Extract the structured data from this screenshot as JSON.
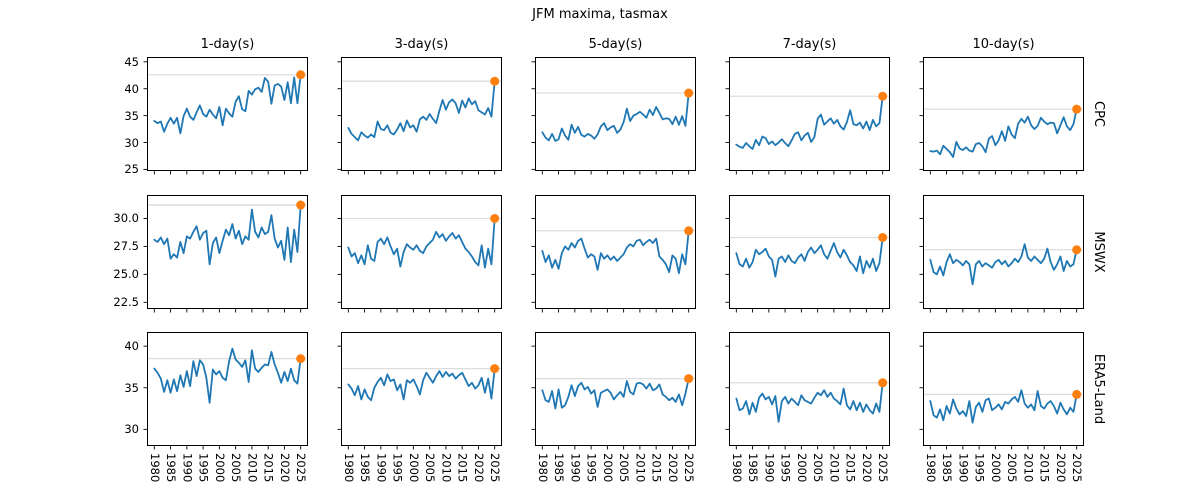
{
  "title": "JFM maxima, tasmax",
  "colors": {
    "series_line": "#1f77b4",
    "latest_dot": "#ff7f0e",
    "ref_line": "#dcdcdc",
    "frame": "#000000"
  },
  "chart_data": {
    "type": "line",
    "title": "JFM maxima, tasmax",
    "grid": "off",
    "legend": "none",
    "columns": [
      "1-day(s)",
      "3-day(s)",
      "5-day(s)",
      "7-day(s)",
      "10-day(s)"
    ],
    "x": [
      1980,
      1981,
      1982,
      1983,
      1984,
      1985,
      1986,
      1987,
      1988,
      1989,
      1990,
      1991,
      1992,
      1993,
      1994,
      1995,
      1996,
      1997,
      1998,
      1999,
      2000,
      2001,
      2002,
      2003,
      2004,
      2005,
      2006,
      2007,
      2008,
      2009,
      2010,
      2011,
      2012,
      2013,
      2014,
      2015,
      2016,
      2017,
      2018,
      2019,
      2020,
      2021,
      2022,
      2023,
      2024,
      2025
    ],
    "xlim": [
      1977.75,
      2027.25
    ],
    "x_tick_labels": [
      "1980",
      "1985",
      "1990",
      "1995",
      "2000",
      "2005",
      "2010",
      "2015",
      "2020",
      "2025"
    ],
    "x_ticks": [
      1980,
      1985,
      1990,
      1995,
      2000,
      2005,
      2010,
      2015,
      2020,
      2025
    ],
    "rows": [
      {
        "label": "CPC",
        "ylim": [
          24.7,
          45.9
        ],
        "yticks": [
          25,
          30,
          35,
          40,
          45
        ],
        "ytick_labels": [
          "25",
          "30",
          "35",
          "40",
          "45"
        ]
      },
      {
        "label": "MSWX",
        "ylim": [
          21.9,
          32.1
        ],
        "yticks": [
          22.5,
          25,
          27.5,
          30
        ],
        "ytick_labels": [
          "22.5",
          "25.0",
          "27.5",
          "30.0"
        ]
      },
      {
        "label": "ERA5-Land",
        "ylim": [
          28.0,
          41.7
        ],
        "yticks": [
          30,
          35,
          40
        ],
        "ytick_labels": [
          "30",
          "35",
          "40"
        ]
      }
    ],
    "panels": [
      {
        "row": "CPC",
        "col": "1-day(s)",
        "ref_value": 42.6,
        "dot_year": 2025,
        "dot_value": 42.6,
        "values": [
          34.0,
          33.6,
          33.9,
          32.0,
          33.5,
          34.6,
          33.5,
          34.6,
          31.7,
          34.9,
          36.3,
          34.8,
          34.2,
          35.6,
          36.9,
          35.3,
          34.8,
          36.1,
          35.2,
          34.5,
          36.6,
          33.2,
          36.3,
          35.4,
          34.8,
          37.6,
          38.6,
          36.2,
          35.8,
          39.6,
          38.9,
          39.9,
          40.2,
          39.4,
          42.0,
          41.3,
          37.2,
          40.6,
          40.9,
          40.4,
          37.9,
          41.2,
          37.3,
          42.1,
          37.3,
          42.6
        ]
      },
      {
        "row": "CPC",
        "col": "3-day(s)",
        "ref_value": 41.4,
        "dot_year": 2025,
        "dot_value": 41.4,
        "values": [
          32.7,
          31.6,
          31.0,
          30.4,
          31.9,
          31.3,
          30.9,
          31.5,
          31.0,
          33.9,
          32.5,
          32.3,
          33.2,
          31.8,
          31.5,
          32.4,
          33.6,
          32.1,
          34.1,
          32.8,
          33.2,
          32.0,
          34.3,
          34.8,
          34.2,
          35.3,
          34.4,
          33.6,
          35.9,
          37.9,
          36.1,
          37.5,
          38.0,
          37.3,
          35.5,
          37.8,
          36.5,
          38.2,
          37.1,
          37.7,
          36.0,
          35.6,
          35.2,
          36.4,
          34.8,
          41.4
        ]
      },
      {
        "row": "CPC",
        "col": "5-day(s)",
        "ref_value": 39.2,
        "dot_year": 2025,
        "dot_value": 39.2,
        "values": [
          31.9,
          30.9,
          30.4,
          31.6,
          30.3,
          30.6,
          32.6,
          31.3,
          30.5,
          33.3,
          31.8,
          32.9,
          31.4,
          31.1,
          31.6,
          31.3,
          30.7,
          31.5,
          33.0,
          33.6,
          32.3,
          32.8,
          33.1,
          31.8,
          32.4,
          33.8,
          36.3,
          34.0,
          35.0,
          35.3,
          35.7,
          35.2,
          34.6,
          36.1,
          35.1,
          36.6,
          35.5,
          34.3,
          34.5,
          34.4,
          33.4,
          34.8,
          33.3,
          34.9,
          33.1,
          39.2
        ]
      },
      {
        "row": "CPC",
        "col": "7-day(s)",
        "ref_value": 38.6,
        "dot_year": 2025,
        "dot_value": 38.6,
        "values": [
          29.6,
          29.2,
          29.0,
          29.9,
          29.3,
          28.8,
          30.5,
          29.5,
          31.1,
          30.8,
          29.7,
          30.2,
          29.5,
          30.0,
          30.6,
          29.9,
          29.3,
          30.4,
          31.6,
          31.9,
          30.4,
          31.3,
          31.8,
          30.1,
          31.0,
          34.4,
          35.2,
          33.3,
          33.9,
          34.5,
          33.5,
          34.2,
          33.0,
          32.4,
          33.8,
          36.0,
          33.4,
          33.2,
          33.7,
          32.6,
          33.9,
          32.3,
          34.2,
          33.0,
          33.6,
          38.6
        ]
      },
      {
        "row": "CPC",
        "col": "10-day(s)",
        "ref_value": 36.2,
        "dot_year": 2025,
        "dot_value": 36.2,
        "values": [
          28.4,
          28.3,
          28.5,
          27.8,
          29.4,
          28.8,
          28.2,
          27.3,
          30.1,
          28.9,
          28.6,
          29.1,
          28.5,
          28.3,
          29.7,
          29.9,
          29.3,
          28.2,
          30.7,
          31.2,
          29.5,
          30.4,
          32.1,
          30.3,
          33.0,
          31.5,
          30.8,
          33.5,
          34.4,
          33.7,
          34.8,
          33.2,
          32.5,
          33.1,
          34.6,
          33.9,
          33.4,
          33.7,
          33.6,
          31.7,
          33.2,
          34.7,
          33.0,
          32.3,
          33.4,
          36.2
        ]
      },
      {
        "row": "MSWX",
        "col": "1-day(s)",
        "ref_value": 31.2,
        "dot_year": 2025,
        "dot_value": 31.2,
        "values": [
          28.1,
          27.9,
          28.3,
          27.7,
          28.2,
          26.4,
          26.8,
          26.5,
          27.9,
          26.9,
          28.4,
          28.2,
          28.8,
          29.3,
          28.1,
          28.7,
          28.9,
          25.9,
          27.8,
          28.3,
          26.9,
          28.0,
          29.0,
          28.5,
          29.5,
          28.2,
          28.9,
          27.7,
          28.4,
          28.1,
          30.8,
          28.8,
          28.3,
          29.2,
          28.6,
          28.8,
          30.3,
          28.2,
          27.4,
          28.0,
          26.3,
          29.2,
          26.1,
          29.0,
          27.0,
          31.2
        ]
      },
      {
        "row": "MSWX",
        "col": "3-day(s)",
        "ref_value": 30.0,
        "dot_year": 2025,
        "dot_value": 30.0,
        "values": [
          27.4,
          26.6,
          26.9,
          26.0,
          26.7,
          25.9,
          27.6,
          26.4,
          26.2,
          27.9,
          28.2,
          27.7,
          28.3,
          27.5,
          26.8,
          27.3,
          25.7,
          27.0,
          27.7,
          27.4,
          27.2,
          27.6,
          27.1,
          26.9,
          27.5,
          27.8,
          28.1,
          28.8,
          28.3,
          28.6,
          28.0,
          28.4,
          28.7,
          28.2,
          28.5,
          27.9,
          27.3,
          27.0,
          26.6,
          26.1,
          25.8,
          27.6,
          25.6,
          27.3,
          25.9,
          30.0
        ]
      },
      {
        "row": "MSWX",
        "col": "5-day(s)",
        "ref_value": 28.9,
        "dot_year": 2025,
        "dot_value": 28.9,
        "values": [
          27.1,
          26.1,
          26.7,
          25.6,
          26.3,
          25.5,
          26.9,
          27.5,
          27.2,
          27.8,
          27.4,
          28.0,
          28.2,
          27.3,
          26.5,
          26.8,
          26.6,
          25.4,
          26.9,
          26.4,
          26.7,
          26.3,
          26.6,
          26.2,
          26.5,
          26.8,
          27.4,
          27.7,
          27.5,
          28.0,
          28.1,
          27.6,
          27.9,
          28.1,
          27.8,
          28.2,
          26.6,
          26.3,
          25.9,
          25.2,
          26.7,
          26.4,
          25.1,
          26.8,
          25.9,
          28.9
        ]
      },
      {
        "row": "MSWX",
        "col": "7-day(s)",
        "ref_value": 28.3,
        "dot_year": 2025,
        "dot_value": 28.3,
        "values": [
          26.9,
          25.9,
          25.7,
          26.4,
          25.6,
          26.1,
          27.2,
          26.8,
          27.0,
          27.3,
          26.6,
          26.3,
          24.8,
          26.4,
          26.6,
          26.1,
          26.7,
          26.2,
          26.0,
          26.5,
          26.8,
          26.2,
          27.0,
          27.4,
          26.9,
          27.2,
          27.6,
          26.8,
          26.4,
          27.1,
          27.8,
          27.0,
          26.5,
          27.2,
          26.7,
          26.1,
          25.8,
          25.3,
          26.6,
          25.1,
          26.2,
          25.6,
          26.4,
          25.3,
          26.0,
          28.3
        ]
      },
      {
        "row": "MSWX",
        "col": "10-day(s)",
        "ref_value": 27.2,
        "dot_year": 2025,
        "dot_value": 27.2,
        "values": [
          26.3,
          25.2,
          25.0,
          25.7,
          24.9,
          26.1,
          26.8,
          26.0,
          26.3,
          26.1,
          25.8,
          26.2,
          25.9,
          24.1,
          25.9,
          26.2,
          25.7,
          26.0,
          25.8,
          25.6,
          26.1,
          26.3,
          25.9,
          26.2,
          25.7,
          26.0,
          26.4,
          26.1,
          26.6,
          27.7,
          26.5,
          26.2,
          26.6,
          26.3,
          26.0,
          26.4,
          27.3,
          26.1,
          25.4,
          25.9,
          26.6,
          25.3,
          26.2,
          25.7,
          25.9,
          27.2
        ]
      },
      {
        "row": "ERA5-Land",
        "col": "1-day(s)",
        "ref_value": 38.5,
        "dot_year": 2025,
        "dot_value": 38.5,
        "values": [
          37.3,
          36.8,
          36.1,
          34.5,
          35.9,
          34.4,
          36.0,
          34.6,
          36.5,
          35.1,
          37.0,
          35.2,
          38.2,
          36.4,
          38.3,
          37.8,
          36.2,
          33.2,
          37.2,
          36.6,
          37.0,
          36.2,
          35.9,
          38.2,
          39.7,
          38.4,
          38.0,
          37.5,
          38.3,
          35.7,
          39.5,
          37.3,
          36.9,
          37.4,
          37.8,
          37.7,
          39.3,
          37.8,
          36.8,
          35.6,
          36.9,
          35.8,
          37.3,
          35.9,
          35.5,
          38.5
        ]
      },
      {
        "row": "ERA5-Land",
        "col": "3-day(s)",
        "ref_value": 37.3,
        "dot_year": 2025,
        "dot_value": 37.3,
        "values": [
          35.4,
          34.9,
          34.1,
          35.2,
          33.6,
          34.8,
          33.9,
          33.5,
          35.0,
          35.7,
          36.2,
          35.3,
          36.6,
          35.8,
          36.0,
          34.7,
          35.4,
          33.6,
          35.9,
          35.6,
          36.0,
          35.2,
          34.2,
          35.9,
          36.8,
          36.2,
          35.6,
          36.4,
          37.0,
          36.3,
          36.9,
          36.4,
          36.7,
          36.1,
          36.5,
          36.8,
          36.0,
          35.2,
          35.6,
          34.9,
          35.3,
          36.2,
          34.4,
          36.1,
          33.7,
          37.3
        ]
      },
      {
        "row": "ERA5-Land",
        "col": "5-day(s)",
        "ref_value": 36.1,
        "dot_year": 2025,
        "dot_value": 36.1,
        "values": [
          34.7,
          33.5,
          33.3,
          34.6,
          32.5,
          34.8,
          32.6,
          32.9,
          33.9,
          35.3,
          34.0,
          35.2,
          35.6,
          34.8,
          35.1,
          34.3,
          34.7,
          32.7,
          34.4,
          34.6,
          34.8,
          34.4,
          33.6,
          34.1,
          34.5,
          33.9,
          35.8,
          34.5,
          34.2,
          35.5,
          35.6,
          35.4,
          34.9,
          35.5,
          34.7,
          34.9,
          35.4,
          34.2,
          33.9,
          33.5,
          33.8,
          33.3,
          34.2,
          32.9,
          34.3,
          36.1
        ]
      },
      {
        "row": "ERA5-Land",
        "col": "7-day(s)",
        "ref_value": 35.6,
        "dot_year": 2025,
        "dot_value": 35.6,
        "values": [
          33.7,
          32.3,
          32.5,
          33.4,
          31.8,
          33.2,
          32.1,
          33.8,
          34.3,
          33.6,
          33.9,
          33.0,
          34.0,
          30.9,
          33.4,
          33.9,
          33.1,
          33.7,
          33.3,
          32.9,
          34.1,
          33.5,
          33.3,
          33.1,
          33.8,
          34.4,
          34.1,
          34.7,
          33.9,
          34.4,
          33.7,
          33.4,
          33.0,
          34.9,
          32.9,
          32.4,
          33.4,
          32.3,
          33.2,
          32.1,
          33.0,
          32.3,
          31.9,
          33.1,
          32.1,
          35.6
        ]
      },
      {
        "row": "ERA5-Land",
        "col": "10-day(s)",
        "ref_value": 34.2,
        "dot_year": 2025,
        "dot_value": 34.2,
        "values": [
          33.4,
          31.7,
          31.4,
          32.4,
          31.1,
          32.8,
          31.9,
          33.6,
          32.5,
          31.8,
          32.2,
          31.6,
          33.4,
          30.8,
          32.7,
          33.2,
          32.1,
          33.5,
          33.7,
          32.3,
          32.6,
          33.0,
          32.4,
          33.3,
          33.1,
          33.6,
          33.9,
          33.3,
          34.7,
          33.1,
          32.6,
          33.0,
          32.3,
          34.6,
          32.8,
          32.5,
          33.1,
          33.4,
          32.8,
          31.9,
          33.2,
          32.4,
          31.8,
          32.6,
          32.1,
          34.2
        ]
      }
    ]
  }
}
